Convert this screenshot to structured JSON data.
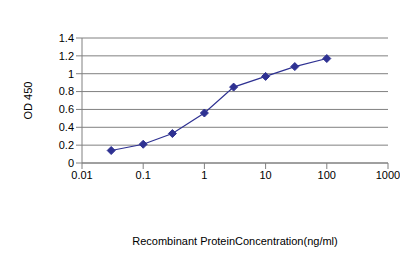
{
  "chart_data": {
    "type": "line",
    "xlabel": "Recombinant ProteinConcentration(ng/ml)",
    "ylabel": "OD 450",
    "x": [
      0.03,
      0.1,
      0.3,
      1,
      3,
      10,
      30,
      100
    ],
    "series": [
      {
        "name": "OD 450",
        "color": "#2e3192",
        "values": [
          0.14,
          0.21,
          0.33,
          0.56,
          0.85,
          0.97,
          1.08,
          1.17
        ],
        "marker": "diamond"
      }
    ],
    "xlim": [
      0.01,
      1000
    ],
    "ylim": [
      0,
      1.4
    ],
    "xticks": [
      0.01,
      0.1,
      1,
      10,
      100,
      1000
    ],
    "yticks": [
      0,
      0.2,
      0.4,
      0.6,
      0.8,
      1,
      1.2,
      1.4
    ],
    "log": "x",
    "grid": true
  }
}
